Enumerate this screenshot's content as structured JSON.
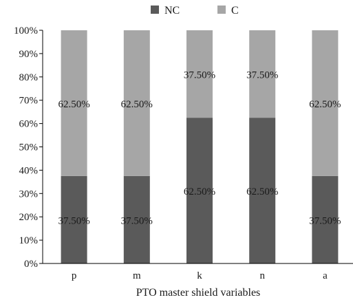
{
  "chart_data": {
    "type": "bar",
    "stacked": true,
    "percent": true,
    "categories": [
      "p",
      "m",
      "k",
      "n",
      "a"
    ],
    "series": [
      {
        "name": "NC",
        "color": "#5a5a5a",
        "values": [
          37.5,
          37.5,
          62.5,
          62.5,
          37.5
        ],
        "labels": [
          "37.50%",
          "37.50%",
          "62.50%",
          "62.50%",
          "37.50%"
        ]
      },
      {
        "name": "C",
        "color": "#a6a6a6",
        "values": [
          62.5,
          62.5,
          37.5,
          37.5,
          62.5
        ],
        "labels": [
          "62.50%",
          "62.50%",
          "37.50%",
          "37.50%",
          "62.50%"
        ]
      }
    ],
    "xlabel": "PTO master shield variables",
    "ylabel": "",
    "ylim": [
      0,
      100
    ],
    "yticks": [
      "0%",
      "10%",
      "20%",
      "30%",
      "40%",
      "50%",
      "60%",
      "70%",
      "80%",
      "90%",
      "100%"
    ],
    "legend_position": "top-center",
    "grid": false
  }
}
